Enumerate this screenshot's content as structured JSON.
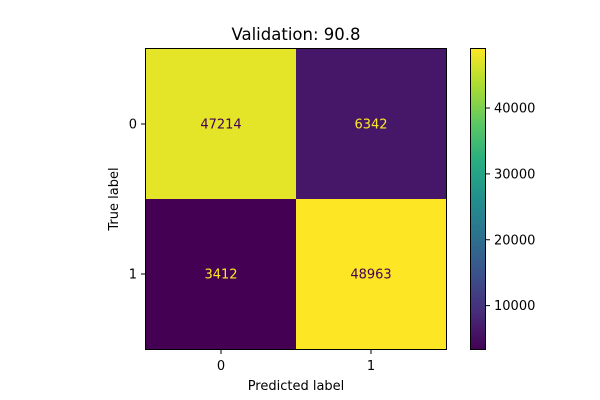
{
  "chart_data": {
    "type": "heatmap",
    "title": "Validation: 90.8",
    "xlabel": "Predicted label",
    "ylabel": "True label",
    "x_categories": [
      "0",
      "1"
    ],
    "y_categories": [
      "0",
      "1"
    ],
    "values": [
      [
        47214,
        6342
      ],
      [
        3412,
        48963
      ]
    ],
    "colorbar": {
      "range": [
        3412,
        48963
      ],
      "ticks": [
        10000,
        20000,
        30000,
        40000
      ],
      "tick_labels": [
        "10000",
        "20000",
        "30000",
        "40000"
      ]
    },
    "colormap": "viridis",
    "cell_text_colors": {
      "on_dark": "#fde725",
      "on_light": "#440154"
    },
    "grid": false
  }
}
